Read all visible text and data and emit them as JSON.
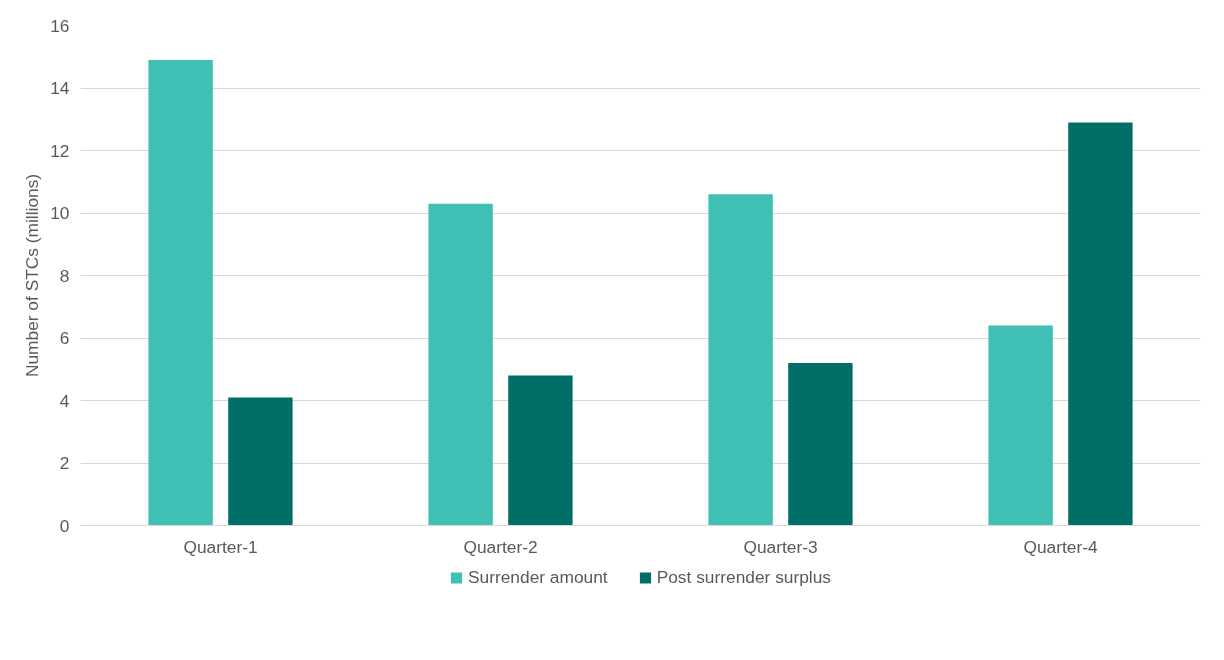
{
  "chart_data": {
    "type": "bar",
    "categories": [
      "Quarter-1",
      "Quarter-2",
      "Quarter-3",
      "Quarter-4"
    ],
    "ylabel": "Number of STCs (millions)",
    "series": [
      {
        "name": "Surrender amount",
        "color": "#40bfb5",
        "values": [
          14.9,
          10.3,
          10.6,
          6.4
        ]
      },
      {
        "name": "Post surrender surplus",
        "color": "#006e67",
        "values": [
          4.1,
          4.8,
          5.2,
          12.9
        ]
      }
    ],
    "ylim": [
      0,
      16
    ],
    "yticks": [
      0,
      2,
      4,
      6,
      8,
      10,
      12,
      14,
      16
    ],
    "grid": "y",
    "legend": "bottom"
  }
}
